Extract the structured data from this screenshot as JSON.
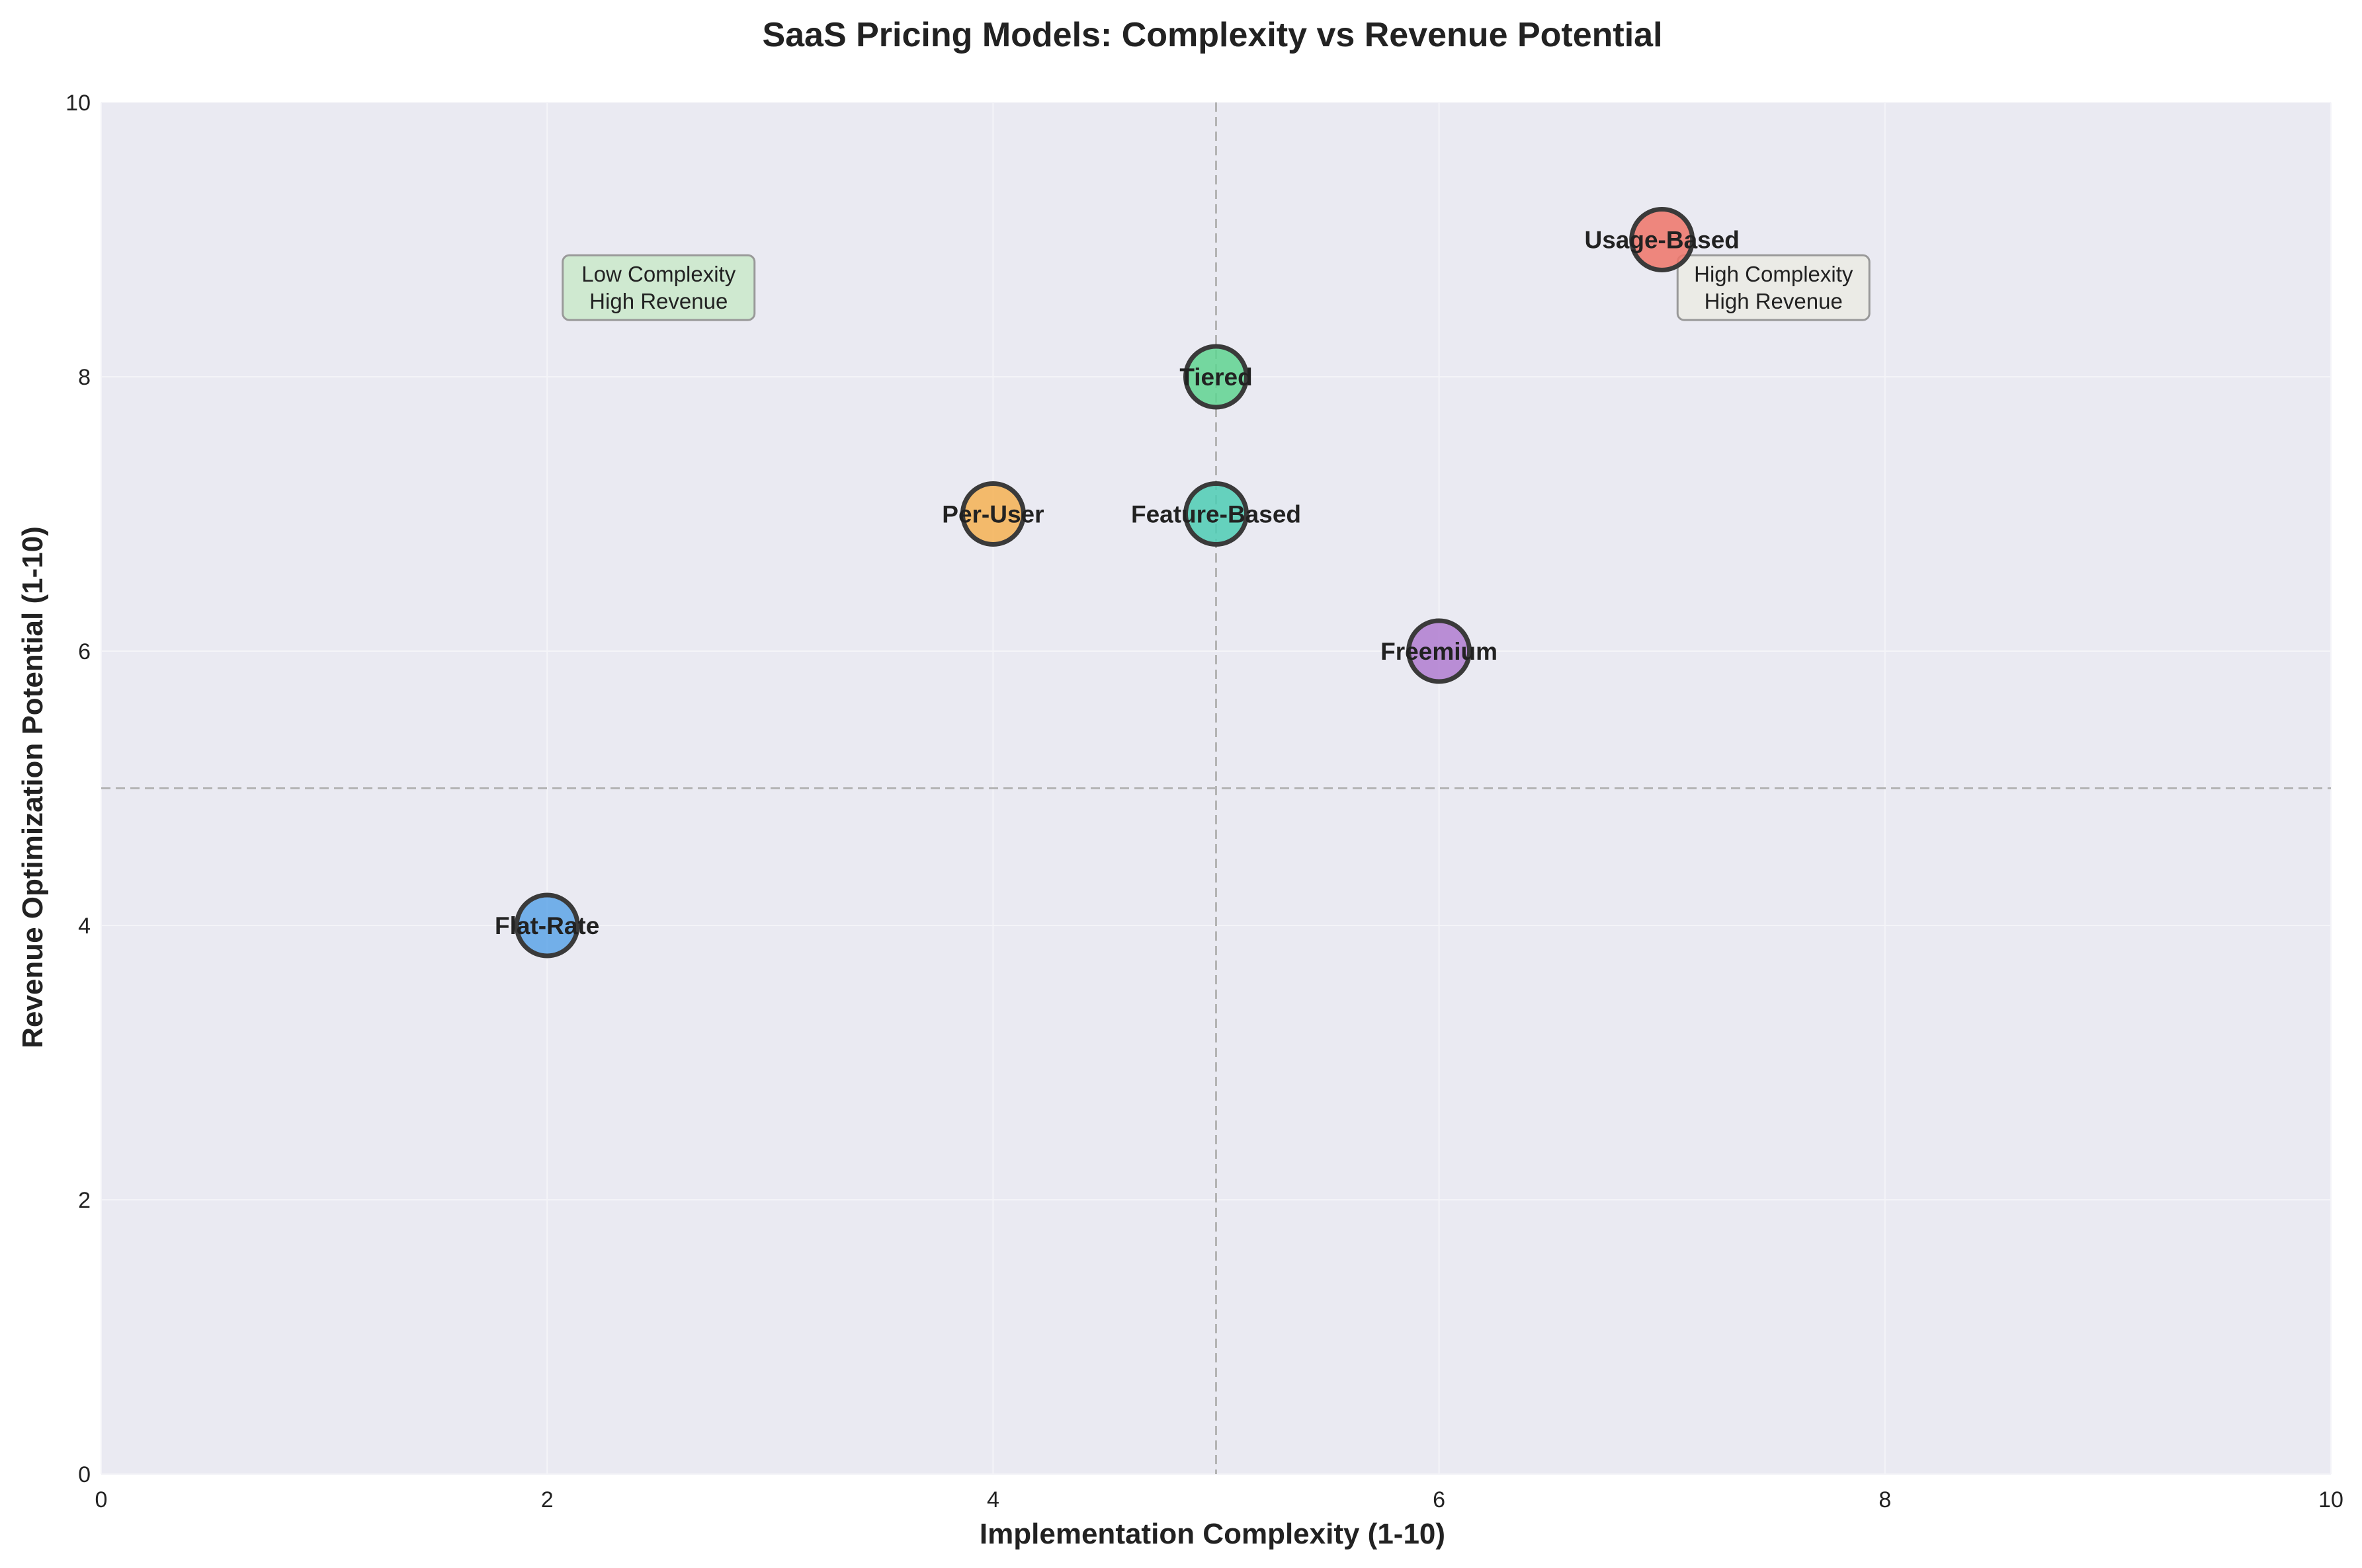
{
  "chart_data": {
    "type": "scatter",
    "title": "SaaS Pricing Models: Complexity vs Revenue Potential",
    "xlabel": "Implementation Complexity (1-10)",
    "ylabel": "Revenue Optimization Potential (1-10)",
    "xlim": [
      0,
      10
    ],
    "ylim": [
      0,
      10
    ],
    "xticks": [
      "0",
      "2",
      "4",
      "6",
      "8",
      "10"
    ],
    "yticks": [
      "0",
      "2",
      "4",
      "6",
      "8",
      "10"
    ],
    "grid": true,
    "reference_lines": {
      "x": 5,
      "y": 5
    },
    "points": [
      {
        "name": "Flat-Rate",
        "x": 2,
        "y": 4,
        "color": "#5DA5E8"
      },
      {
        "name": "Per-User",
        "x": 4,
        "y": 7,
        "color": "#F5B254"
      },
      {
        "name": "Tiered",
        "x": 5,
        "y": 8,
        "color": "#5FD490"
      },
      {
        "name": "Feature-Based",
        "x": 5,
        "y": 7,
        "color": "#4ECDB4"
      },
      {
        "name": "Freemium",
        "x": 6,
        "y": 6,
        "color": "#B07CD0"
      },
      {
        "name": "Usage-Based",
        "x": 7,
        "y": 9,
        "color": "#EE7468"
      }
    ],
    "annotations": [
      {
        "lines": [
          "Low Complexity",
          "High Revenue"
        ],
        "x": 2.5,
        "y": 8.65,
        "fill": "#cfe9d0"
      },
      {
        "lines": [
          "High Complexity",
          "High Revenue"
        ],
        "x": 7.5,
        "y": 8.65,
        "fill": "#ebebe6"
      }
    ],
    "colors": {
      "plot_background": "#EAEAF2",
      "grid": "#f4f4f8",
      "reference_line": "#b4b4b4",
      "marker_edge": "#3a3a3a"
    }
  }
}
